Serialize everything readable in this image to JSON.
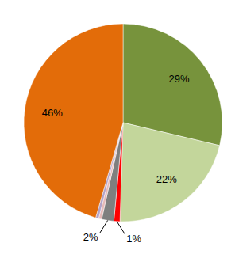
{
  "chart_data": {
    "type": "pie",
    "values": [
      29,
      22,
      1,
      2,
      0.5,
      0.5,
      46
    ],
    "value_labels": [
      "29%",
      "22%",
      "1%",
      "2%",
      null,
      null,
      "46%"
    ],
    "colors": [
      "#77933c",
      "#c3d69b",
      "#ff0000",
      "#7f7f7f",
      "#e6b9b8",
      "#b3a2c7",
      "#e36c09"
    ],
    "data_labels": true
  }
}
